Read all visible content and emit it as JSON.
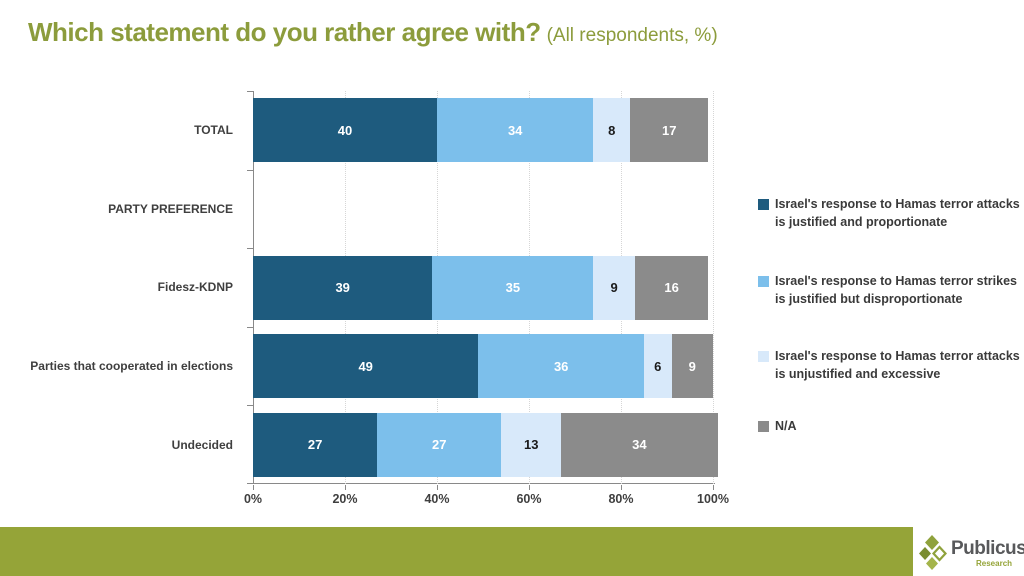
{
  "title": {
    "main": "Which statement do you rather agree with?",
    "suffix": "(All respondents, %)"
  },
  "colors": {
    "title": "#8c9c3c",
    "footer": "#95a438",
    "axis": "#898989",
    "grid": "#d6d6d6",
    "category_label": "#3f3f3f",
    "logo_brand_text": "#58595b",
    "logo_research_text": "#95a438"
  },
  "chart_data": {
    "type": "bar",
    "stacked": true,
    "orientation": "horizontal",
    "title": "Which statement do you rather agree with? (All respondents, %)",
    "categories": [
      "TOTAL",
      "PARTY PREFERENCE",
      "Fidesz-KDNP",
      "Parties that cooperated in elections",
      "Undecided"
    ],
    "series": [
      {
        "name": "Israel's response to Hamas terror attacks is justified and proportionate",
        "color": "#1e5b7e",
        "label_color": "#ffffff",
        "values": [
          40,
          null,
          39,
          49,
          27
        ]
      },
      {
        "name": "Israel's response to Hamas terror strikes is justified but disproportionate",
        "color": "#7cbfeb",
        "label_color": "#ffffff",
        "values": [
          34,
          null,
          35,
          36,
          27
        ]
      },
      {
        "name": "Israel's response to Hamas terror attacks is unjustified and excessive",
        "color": "#d8e9fa",
        "label_color": "#1a1a1a",
        "values": [
          8,
          null,
          9,
          6,
          13
        ]
      },
      {
        "name": "N/A",
        "color": "#8b8b8b",
        "label_color": "#ffffff",
        "values": [
          17,
          null,
          16,
          9,
          34
        ]
      }
    ],
    "x_ticks": [
      "0%",
      "20%",
      "40%",
      "60%",
      "80%",
      "100%"
    ],
    "xlim": [
      0,
      100
    ],
    "grid": "vertical-dotted",
    "legend_position": "right"
  },
  "footer": {
    "brand": "Publicus",
    "brand_sub": "Research"
  }
}
